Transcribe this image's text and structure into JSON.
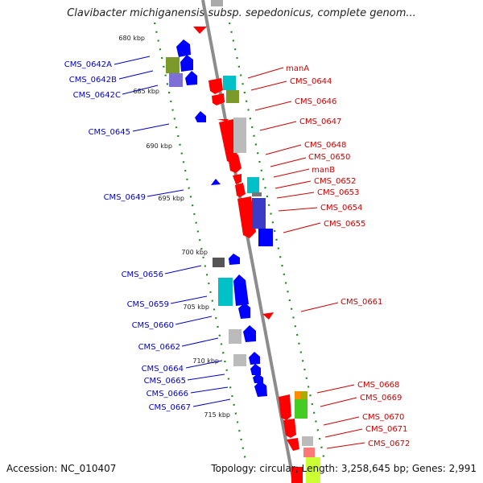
{
  "title": "Clavibacter michiganensis subsp. sepedonicus, complete genom...",
  "footer": {
    "accession": "Accession: NC_010407",
    "stats": "Topology: circular; Length: 3,258,645 bp; Genes: 2,991"
  },
  "colors": {
    "backbone": "#8c8c8c",
    "tick_dots": "#1e8c1e",
    "forward_label": "#d00000",
    "reverse_label": "#0000cc"
  },
  "kbp_labels": [
    "680 kbp",
    "685 kbp",
    "690 kbp",
    "695 kbp",
    "700 kbp",
    "705 kbp",
    "710 kbp",
    "715 kbp"
  ],
  "left_labels": [
    "CMS_0642A",
    "CMS_0642B",
    "CMS_0642C",
    "CMS_0645",
    "CMS_0649",
    "CMS_0656",
    "CMS_0659",
    "CMS_0660",
    "CMS_0662",
    "CMS_0664",
    "CMS_0665",
    "CMS_0666",
    "CMS_0667"
  ],
  "right_labels": [
    "manA",
    "CMS_0644",
    "CMS_0646",
    "CMS_0647",
    "CMS_0648",
    "CMS_0650",
    "manB",
    "CMS_0652",
    "CMS_0653",
    "CMS_0654",
    "CMS_0655",
    "CMS_0661",
    "CMS_0668",
    "CMS_0669",
    "CMS_0670",
    "CMS_0671",
    "CMS_0672"
  ]
}
